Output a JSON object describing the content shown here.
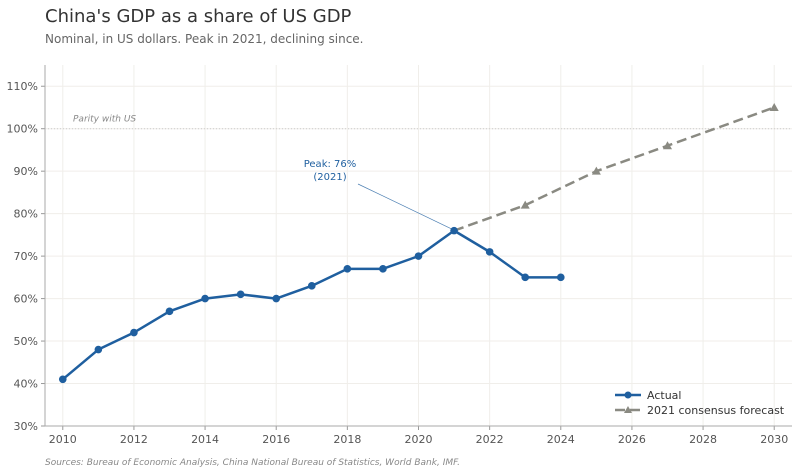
{
  "chart_data": {
    "type": "line",
    "title": "China's GDP as a share of US GDP",
    "subtitle": "Nominal, in US dollars. Peak in 2021, declining since.",
    "source": "Sources: Bureau of Economic Analysis, China National Bureau of Statistics, World Bank, IMF.",
    "xlabel": "",
    "ylabel": "",
    "xlim": [
      2009.5,
      2030.5
    ],
    "ylim": [
      30,
      115
    ],
    "xticks": [
      2010,
      2012,
      2014,
      2016,
      2018,
      2020,
      2022,
      2024,
      2026,
      2028,
      2030
    ],
    "yticks": [
      30,
      40,
      50,
      60,
      70,
      80,
      90,
      100,
      110
    ],
    "ytick_labels": [
      "30%",
      "40%",
      "50%",
      "60%",
      "70%",
      "80%",
      "90%",
      "100%",
      "110%"
    ],
    "grid": true,
    "legend_position": "bottom-right",
    "series": [
      {
        "name": "Actual",
        "color": "#1f5f9f",
        "style": "solid",
        "marker": "circle",
        "x": [
          2010,
          2011,
          2012,
          2013,
          2014,
          2015,
          2016,
          2017,
          2018,
          2019,
          2020,
          2021,
          2022,
          2023,
          2024
        ],
        "y": [
          41,
          48,
          52,
          57,
          60,
          61,
          60,
          63,
          67,
          67,
          70,
          76,
          71,
          65,
          65
        ]
      },
      {
        "name": "2021 consensus forecast",
        "color": "#8a8a82",
        "style": "dashed",
        "marker": "triangle",
        "x": [
          2021,
          2023,
          2025,
          2027,
          2030
        ],
        "y": [
          76,
          82,
          90,
          96,
          105
        ]
      }
    ],
    "reference_line": {
      "y": 100,
      "label": "Parity with US"
    },
    "annotations": [
      {
        "line1": "Peak: 76%",
        "line2": "(2021)",
        "x": 2021,
        "y": 76,
        "color": "#1f5f9f"
      }
    ]
  }
}
